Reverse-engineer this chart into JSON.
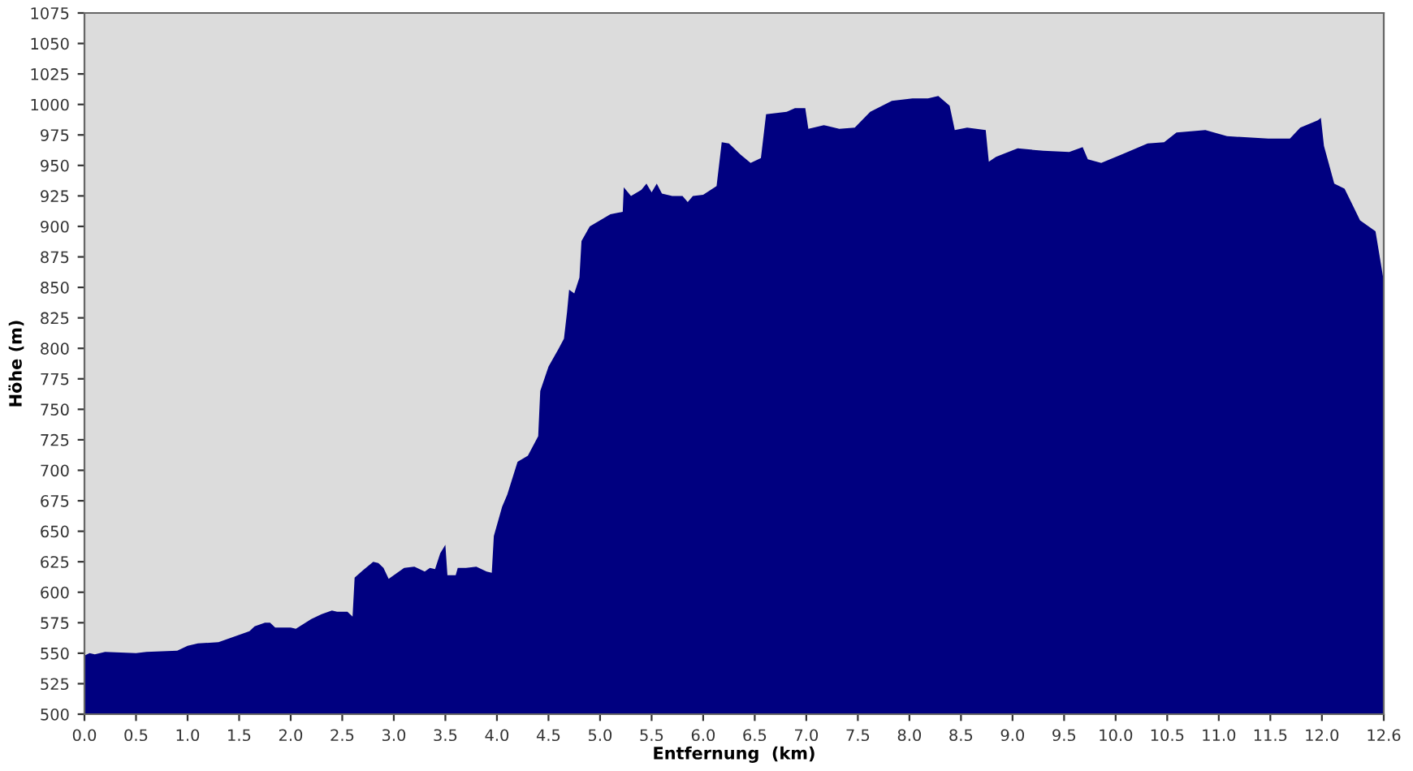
{
  "chart_data": {
    "type": "area",
    "xlabel": "Entfernung  (km)",
    "ylabel": "Höhe (m)",
    "xlim": [
      0,
      12.6
    ],
    "ylim": [
      500,
      1075
    ],
    "xticks": [
      {
        "value": 0,
        "label": "0.0"
      },
      {
        "value": 0.5,
        "label": "0.5"
      },
      {
        "value": 1,
        "label": "1.0"
      },
      {
        "value": 1.5,
        "label": "1.5"
      },
      {
        "value": 2,
        "label": "2.0"
      },
      {
        "value": 2.5,
        "label": "2.5"
      },
      {
        "value": 3,
        "label": "3.0"
      },
      {
        "value": 3.5,
        "label": "3.5"
      },
      {
        "value": 4,
        "label": "4.0"
      },
      {
        "value": 4.5,
        "label": "4.5"
      },
      {
        "value": 5,
        "label": "5.0"
      },
      {
        "value": 5.5,
        "label": "5.5"
      },
      {
        "value": 6,
        "label": "6.0"
      },
      {
        "value": 6.5,
        "label": "6.5"
      },
      {
        "value": 7,
        "label": "7.0"
      },
      {
        "value": 7.5,
        "label": "7.5"
      },
      {
        "value": 8,
        "label": "8.0"
      },
      {
        "value": 8.5,
        "label": "8.5"
      },
      {
        "value": 9,
        "label": "9.0"
      },
      {
        "value": 9.5,
        "label": "9.5"
      },
      {
        "value": 10,
        "label": "10.0"
      },
      {
        "value": 10.5,
        "label": "10.5"
      },
      {
        "value": 11,
        "label": "11.0"
      },
      {
        "value": 11.5,
        "label": "11.5"
      },
      {
        "value": 12,
        "label": "12.0"
      },
      12.6
    ],
    "yticks": [
      500,
      525,
      550,
      575,
      600,
      625,
      650,
      675,
      700,
      725,
      750,
      775,
      800,
      825,
      850,
      875,
      900,
      925,
      950,
      975,
      1000,
      1025,
      1050,
      1075
    ],
    "grid": false,
    "x": [
      0,
      0.05,
      0.1,
      0.2,
      0.5,
      0.6,
      0.9,
      1.0,
      1.1,
      1.3,
      1.5,
      1.6,
      1.65,
      1.75,
      1.8,
      1.85,
      2.0,
      2.05,
      2.2,
      2.3,
      2.4,
      2.45,
      2.55,
      2.6,
      2.62,
      2.7,
      2.8,
      2.85,
      2.9,
      2.95,
      3.0,
      3.1,
      3.2,
      3.3,
      3.35,
      3.4,
      3.45,
      3.5,
      3.52,
      3.6,
      3.62,
      3.7,
      3.8,
      3.9,
      3.95,
      3.97,
      4.05,
      4.1,
      4.2,
      4.3,
      4.35,
      4.4,
      4.42,
      4.5,
      4.6,
      4.65,
      4.68,
      4.7,
      4.75,
      4.8,
      4.82,
      4.9,
      5.0,
      5.1,
      5.22,
      5.23,
      5.3,
      5.4,
      5.45,
      5.5,
      5.55,
      5.6,
      5.7,
      5.8,
      5.85,
      5.9,
      6.0,
      6.13,
      6.18,
      6.25,
      6.36,
      6.46,
      6.56,
      6.61,
      6.81,
      6.89,
      6.99,
      7.02,
      7.17,
      7.32,
      7.47,
      7.62,
      7.83,
      8.03,
      8.18,
      8.28,
      8.39,
      8.44,
      8.56,
      8.74,
      8.77,
      8.84,
      9.05,
      9.3,
      9.55,
      9.68,
      9.73,
      9.86,
      10.06,
      10.31,
      10.47,
      10.59,
      10.87,
      11.08,
      11.48,
      11.69,
      11.79,
      11.96,
      11.99,
      12.02,
      12.12,
      12.22,
      12.37,
      12.52,
      12.6
    ],
    "series": [
      {
        "color": "#000080",
        "values": [
          548,
          550,
          549,
          551,
          550,
          551,
          552,
          556,
          558,
          559,
          565,
          568,
          572,
          575,
          575,
          571,
          571,
          570,
          578,
          582,
          585,
          584,
          584,
          580,
          612,
          618,
          625,
          624,
          620,
          611,
          614,
          620,
          621,
          617,
          620,
          619,
          632,
          639,
          614,
          614,
          620,
          620,
          621,
          617,
          616,
          646,
          670,
          680,
          707,
          712,
          720,
          728,
          765,
          785,
          800,
          808,
          830,
          848,
          845,
          858,
          888,
          900,
          905,
          910,
          912,
          932,
          925,
          930,
          935,
          928,
          935,
          927,
          925,
          925,
          920,
          925,
          926,
          933,
          969,
          968,
          959,
          952,
          956,
          992,
          994,
          997,
          997,
          980,
          983,
          980,
          981,
          994,
          1003,
          1005,
          1005,
          1007,
          999,
          979,
          981,
          979,
          953,
          957,
          964,
          962,
          961,
          965,
          955,
          952,
          959,
          968,
          969,
          977,
          979,
          974,
          972,
          972,
          981,
          987,
          989,
          966,
          935,
          931,
          905,
          896,
          855
        ]
      }
    ]
  }
}
